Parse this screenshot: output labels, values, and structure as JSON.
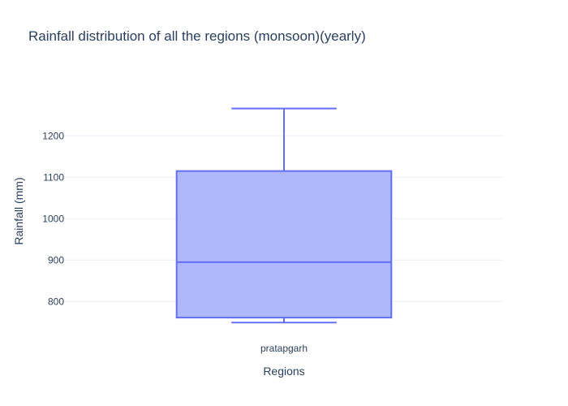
{
  "chart_data": {
    "type": "box",
    "title": "Rainfall distribution of all the regions (monsoon)(yearly)",
    "xlabel": "Regions",
    "ylabel": "Rainfall (mm)",
    "categories": [
      "pratapgarh"
    ],
    "y_ticks": [
      800,
      900,
      1000,
      1100,
      1200
    ],
    "ylim": [
      724,
      1332
    ],
    "grid": true,
    "series": [
      {
        "category": "pratapgarh",
        "min": 749,
        "q1": 761,
        "median": 895,
        "q3": 1115,
        "max": 1266
      }
    ]
  },
  "colors": {
    "box_fill": "#abb3fb",
    "box_line": "#636efa",
    "grid": "#ebf0f8",
    "text": "#2a3f5f"
  }
}
